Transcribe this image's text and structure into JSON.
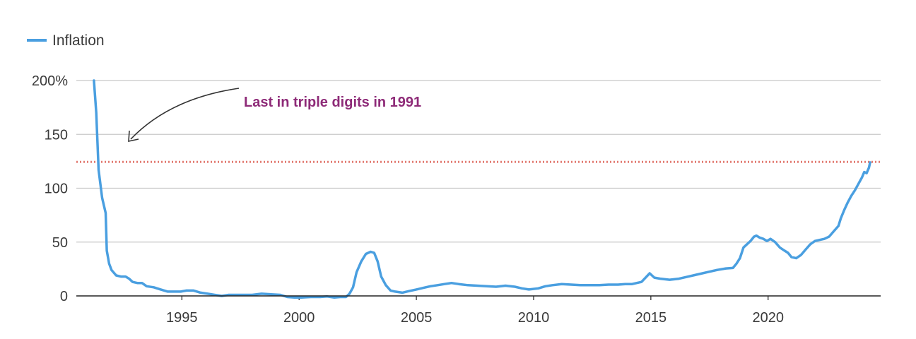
{
  "chart_data": {
    "type": "line",
    "series": [
      {
        "name": "Inflation",
        "color": "#4a9fe0",
        "points": [
          [
            1991.25,
            200
          ],
          [
            1991.35,
            170
          ],
          [
            1991.45,
            117
          ],
          [
            1991.6,
            91
          ],
          [
            1991.75,
            77
          ],
          [
            1991.8,
            42
          ],
          [
            1991.9,
            30
          ],
          [
            1992.0,
            24
          ],
          [
            1992.2,
            19
          ],
          [
            1992.4,
            18
          ],
          [
            1992.6,
            18
          ],
          [
            1992.75,
            16
          ],
          [
            1992.9,
            13
          ],
          [
            1993.1,
            12
          ],
          [
            1993.3,
            12
          ],
          [
            1993.5,
            9
          ],
          [
            1993.8,
            8
          ],
          [
            1994.1,
            6
          ],
          [
            1994.4,
            4
          ],
          [
            1994.7,
            4
          ],
          [
            1994.95,
            4
          ],
          [
            1995.2,
            5
          ],
          [
            1995.5,
            5
          ],
          [
            1995.8,
            3
          ],
          [
            1996.1,
            2
          ],
          [
            1996.4,
            1
          ],
          [
            1996.7,
            0
          ],
          [
            1997.0,
            1
          ],
          [
            1997.3,
            1
          ],
          [
            1997.6,
            1
          ],
          [
            1998.0,
            1
          ],
          [
            1998.4,
            2
          ],
          [
            1998.8,
            1.5
          ],
          [
            1999.2,
            1
          ],
          [
            1999.5,
            -1
          ],
          [
            1999.8,
            -1.5
          ],
          [
            2000.1,
            -1.5
          ],
          [
            2000.5,
            -1
          ],
          [
            2000.9,
            -1
          ],
          [
            2001.2,
            -0.5
          ],
          [
            2001.5,
            -1.5
          ],
          [
            2001.75,
            -1
          ],
          [
            2002.0,
            -1
          ],
          [
            2002.15,
            2
          ],
          [
            2002.3,
            8
          ],
          [
            2002.45,
            22
          ],
          [
            2002.65,
            32
          ],
          [
            2002.85,
            39
          ],
          [
            2003.05,
            41
          ],
          [
            2003.2,
            40
          ],
          [
            2003.35,
            32
          ],
          [
            2003.5,
            18
          ],
          [
            2003.7,
            10
          ],
          [
            2003.9,
            5
          ],
          [
            2004.1,
            4
          ],
          [
            2004.4,
            3
          ],
          [
            2004.7,
            4.5
          ],
          [
            2005.0,
            6
          ],
          [
            2005.3,
            7.5
          ],
          [
            2005.6,
            9
          ],
          [
            2005.9,
            10
          ],
          [
            2006.2,
            11
          ],
          [
            2006.5,
            12
          ],
          [
            2006.8,
            11
          ],
          [
            2007.2,
            10
          ],
          [
            2007.6,
            9.5
          ],
          [
            2008.0,
            9
          ],
          [
            2008.4,
            8.5
          ],
          [
            2008.8,
            9.5
          ],
          [
            2009.2,
            8.5
          ],
          [
            2009.5,
            7
          ],
          [
            2009.8,
            6
          ],
          [
            2010.2,
            7
          ],
          [
            2010.5,
            9
          ],
          [
            2010.8,
            10
          ],
          [
            2011.2,
            11
          ],
          [
            2011.6,
            10.5
          ],
          [
            2012.0,
            10
          ],
          [
            2012.4,
            10
          ],
          [
            2012.8,
            10
          ],
          [
            2013.2,
            10.5
          ],
          [
            2013.6,
            10.5
          ],
          [
            2013.9,
            11
          ],
          [
            2014.2,
            11
          ],
          [
            2014.6,
            13
          ],
          [
            2014.95,
            21
          ],
          [
            2015.15,
            17
          ],
          [
            2015.4,
            16
          ],
          [
            2015.8,
            15
          ],
          [
            2016.2,
            16
          ],
          [
            2016.6,
            18
          ],
          [
            2017.0,
            20
          ],
          [
            2017.4,
            22
          ],
          [
            2017.8,
            24
          ],
          [
            2018.2,
            25.5
          ],
          [
            2018.5,
            26
          ],
          [
            2018.65,
            30
          ],
          [
            2018.8,
            35
          ],
          [
            2018.95,
            45
          ],
          [
            2019.1,
            48
          ],
          [
            2019.25,
            51
          ],
          [
            2019.4,
            55
          ],
          [
            2019.5,
            56
          ],
          [
            2019.65,
            54
          ],
          [
            2019.8,
            53
          ],
          [
            2019.95,
            51
          ],
          [
            2020.1,
            53
          ],
          [
            2020.3,
            50
          ],
          [
            2020.5,
            45
          ],
          [
            2020.7,
            42
          ],
          [
            2020.85,
            40
          ],
          [
            2021.0,
            36
          ],
          [
            2021.2,
            35
          ],
          [
            2021.4,
            38
          ],
          [
            2021.6,
            43
          ],
          [
            2021.8,
            48
          ],
          [
            2022.0,
            51
          ],
          [
            2022.2,
            52
          ],
          [
            2022.4,
            53
          ],
          [
            2022.6,
            55
          ],
          [
            2022.8,
            60
          ],
          [
            2023.0,
            65
          ],
          [
            2023.1,
            72
          ],
          [
            2023.25,
            80
          ],
          [
            2023.4,
            87
          ],
          [
            2023.55,
            93
          ],
          [
            2023.7,
            98
          ],
          [
            2023.85,
            104
          ],
          [
            2024.0,
            110
          ],
          [
            2024.1,
            115
          ],
          [
            2024.2,
            114
          ],
          [
            2024.3,
            119
          ],
          [
            2024.35,
            124
          ]
        ]
      }
    ],
    "reference_line": {
      "y": 124.4,
      "color": "#e27b72",
      "style": "dotted"
    },
    "annotation": {
      "text": "Last in triple digits in 1991",
      "color": "#8e2b78"
    },
    "ylim": [
      0,
      200
    ],
    "xlim": [
      1990.5,
      2024.8
    ],
    "y_ticks": [
      0,
      50,
      100,
      150,
      200
    ],
    "y_tick_labels": [
      "0",
      "50",
      "100",
      "150",
      "200%"
    ],
    "x_ticks": [
      1995,
      2000,
      2005,
      2010,
      2015,
      2020
    ],
    "x_tick_labels": [
      "1995",
      "2000",
      "2005",
      "2010",
      "2015",
      "2020"
    ],
    "grid": true,
    "legend_position": "top-left"
  }
}
